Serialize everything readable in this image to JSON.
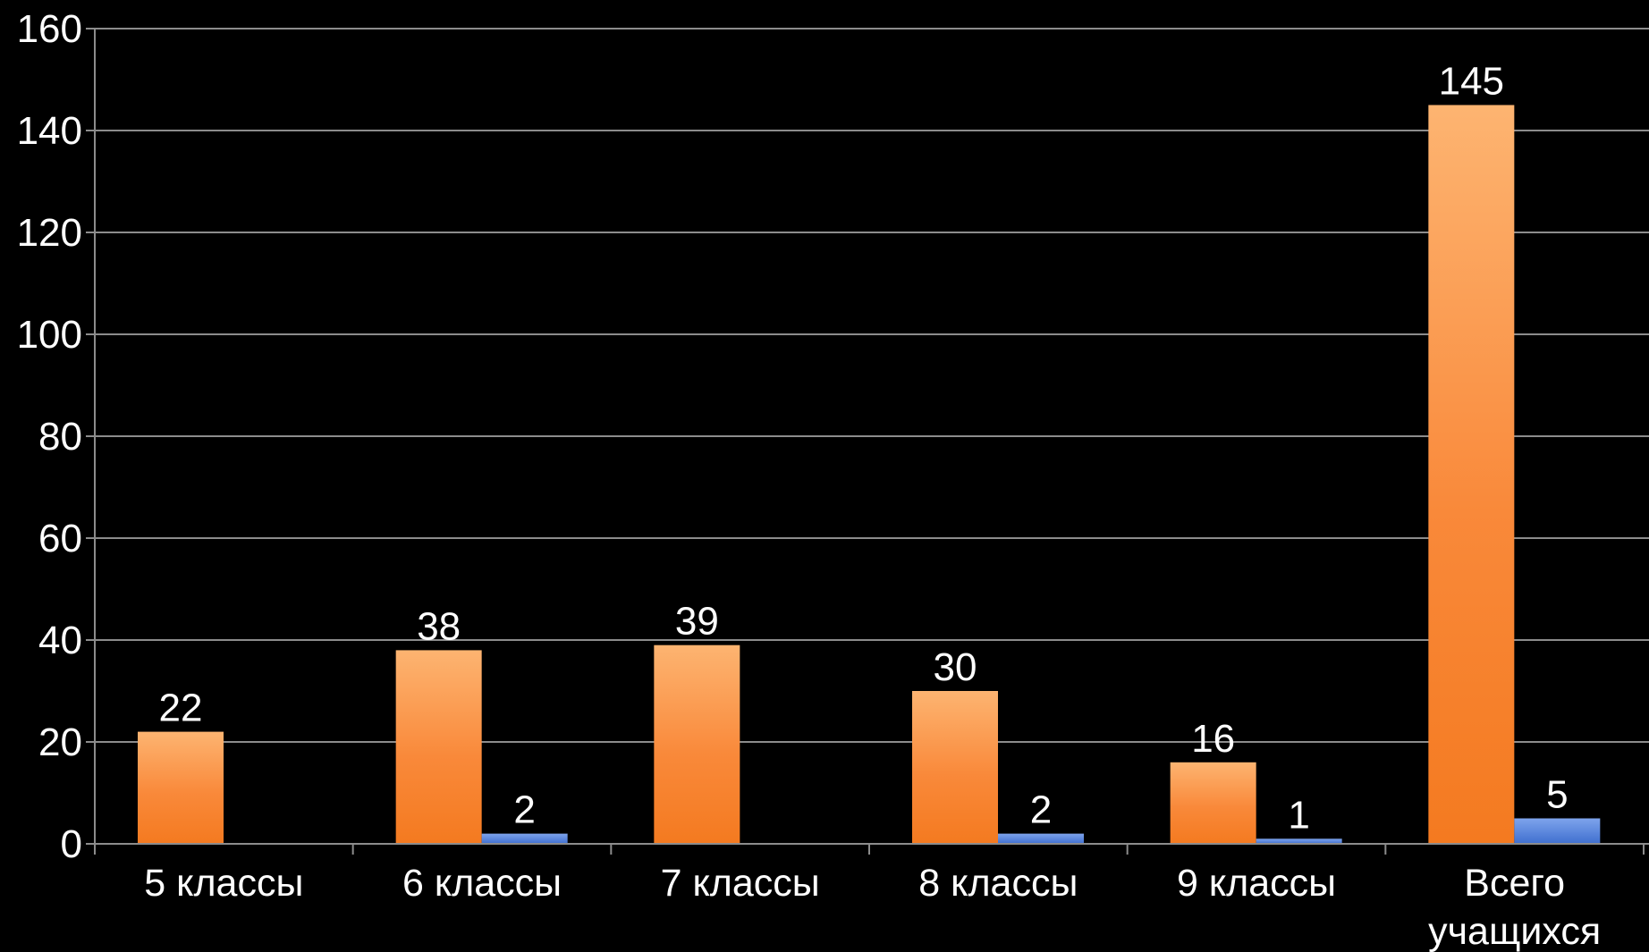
{
  "chart_data": {
    "type": "bar",
    "categories": [
      [
        "5 классы"
      ],
      [
        "6 классы"
      ],
      [
        "7 классы"
      ],
      [
        "8 классы"
      ],
      [
        "9 классы"
      ],
      [
        "Всего",
        "учащихся"
      ]
    ],
    "series": [
      {
        "color": "#f7852d",
        "values": [
          22,
          38,
          39,
          30,
          16,
          145
        ]
      },
      {
        "color": "#4f7fd6",
        "values": [
          null,
          2,
          null,
          2,
          1,
          5
        ]
      }
    ],
    "ylim": [
      0,
      160
    ],
    "yticks": [
      0,
      20,
      40,
      60,
      80,
      100,
      120,
      140,
      160
    ],
    "grid": true,
    "background": "#000000"
  }
}
